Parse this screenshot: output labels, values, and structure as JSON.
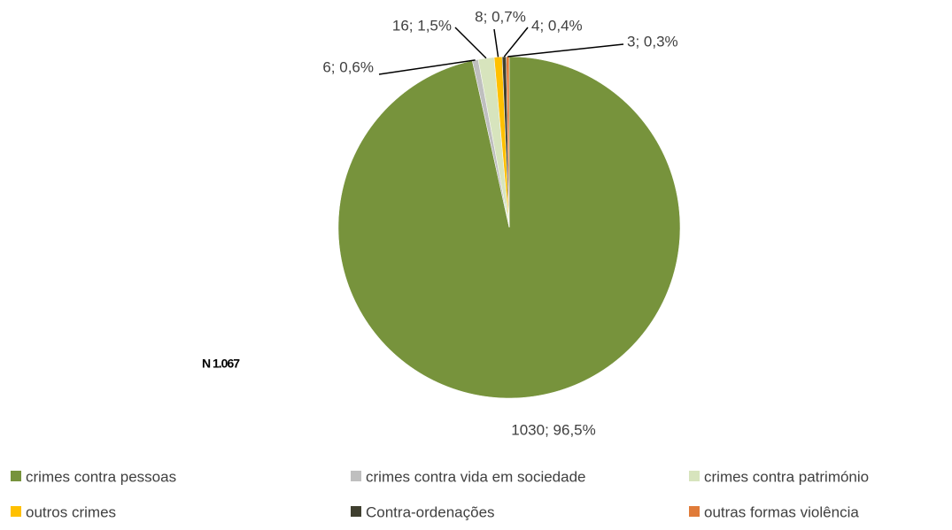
{
  "chart_data": {
    "type": "pie",
    "categories": [
      "crimes contra pessoas",
      "crimes contra vida em sociedade",
      "crimes contra património",
      "outros crimes",
      "Contra-ordenações",
      "outras formas violência"
    ],
    "values": [
      1030,
      6,
      16,
      8,
      4,
      3
    ],
    "value_labels": [
      "1030; 96,5%",
      "6; 0,6%",
      "16; 1,5%",
      "8; 0,7%",
      "4; 0,4%",
      "3; 0,3%"
    ],
    "colors": [
      "#77933c",
      "#bfbfbf",
      "#d7e4bd",
      "#ffc000",
      "#3f3f2f",
      "#e07b39"
    ],
    "annotation": "N 1.067",
    "legend": "bottom"
  }
}
